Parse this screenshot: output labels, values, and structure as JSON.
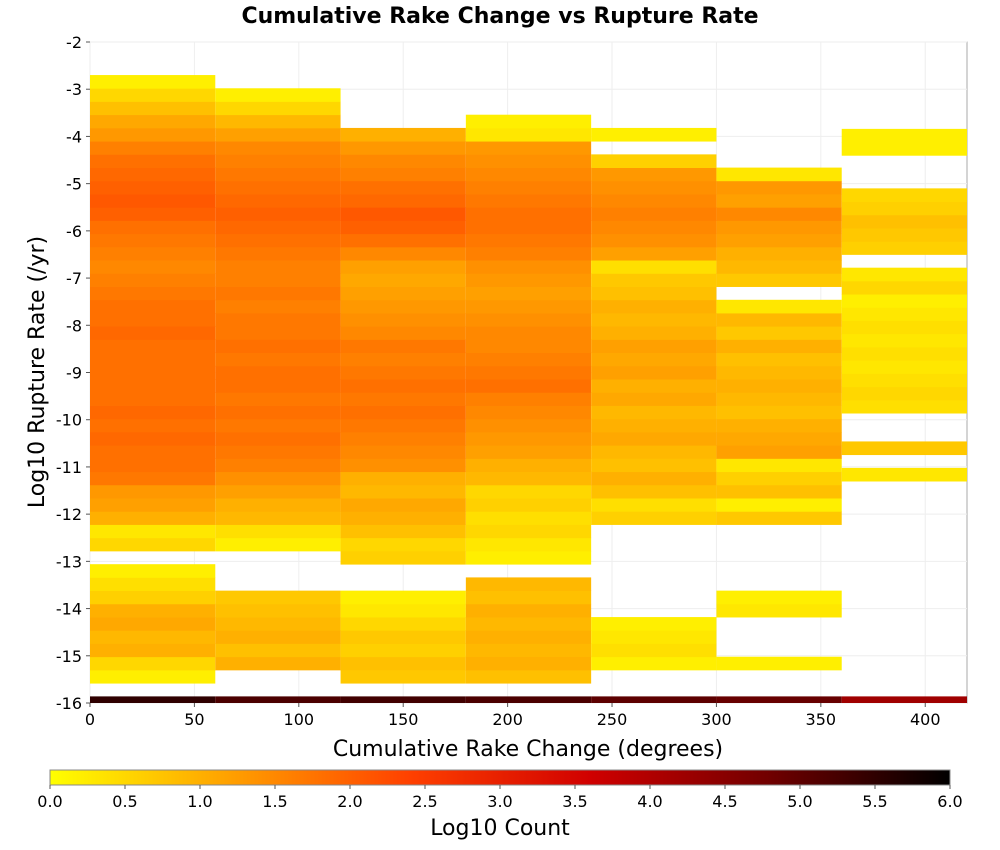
{
  "chart_data": {
    "type": "heatmap",
    "title": "Cumulative Rake Change vs Rupture Rate",
    "xlabel": "Cumulative Rake Change (degrees)",
    "ylabel": "Log10 Rupture Rate (/yr)",
    "xlim": [
      0,
      420
    ],
    "ylim": [
      -16,
      -2
    ],
    "x_ticks": [
      0,
      50,
      100,
      150,
      200,
      250,
      300,
      350,
      400
    ],
    "y_ticks": [
      -2,
      -3,
      -4,
      -5,
      -6,
      -7,
      -8,
      -9,
      -10,
      -11,
      -12,
      -13,
      -14,
      -15,
      -16
    ],
    "x_bin_edges": [
      0,
      60,
      120,
      180,
      240,
      300,
      360,
      420
    ],
    "y_bin_width": 0.28,
    "y_bin_start": -16,
    "grid": true,
    "colorbar": {
      "label": "Log10 Count",
      "range": [
        0,
        6
      ],
      "ticks": [
        "0.0",
        "0.5",
        "1.0",
        "1.5",
        "2.0",
        "2.5",
        "3.0",
        "3.5",
        "4.0",
        "4.5",
        "5.0",
        "5.5",
        "6.0"
      ],
      "colormap": [
        "#ffff00",
        "#ffa000",
        "#ff4000",
        "#d00000",
        "#700000",
        "#000000"
      ]
    },
    "columns": [
      {
        "x_range": [
          0,
          60
        ],
        "bins": [
          [
            -15.58,
            0.2
          ],
          [
            -15.3,
            0.5
          ],
          [
            -15.02,
            1.0
          ],
          [
            -14.74,
            0.9
          ],
          [
            -14.46,
            1.1
          ],
          [
            -14.18,
            1.0
          ],
          [
            -13.9,
            0.6
          ],
          [
            -13.62,
            0.4
          ],
          [
            -13.34,
            0.2
          ],
          [
            -12.78,
            0.5
          ],
          [
            -12.5,
            0.3
          ],
          [
            -12.22,
            1.0
          ],
          [
            -11.94,
            1.2
          ],
          [
            -11.66,
            1.3
          ],
          [
            -11.38,
            1.7
          ],
          [
            -11.1,
            1.8
          ],
          [
            -10.82,
            1.8
          ],
          [
            -10.54,
            1.9
          ],
          [
            -10.26,
            1.8
          ],
          [
            -9.98,
            1.9
          ],
          [
            -9.7,
            1.8
          ],
          [
            -9.42,
            1.8
          ],
          [
            -9.14,
            1.8
          ],
          [
            -8.86,
            1.8
          ],
          [
            -8.58,
            1.8
          ],
          [
            -8.3,
            1.9
          ],
          [
            -8.02,
            1.8
          ],
          [
            -7.74,
            1.8
          ],
          [
            -7.46,
            1.7
          ],
          [
            -7.18,
            1.6
          ],
          [
            -6.9,
            1.5
          ],
          [
            -6.62,
            1.6
          ],
          [
            -6.34,
            1.7
          ],
          [
            -6.06,
            1.8
          ],
          [
            -5.78,
            2.0
          ],
          [
            -5.5,
            2.1
          ],
          [
            -5.22,
            2.0
          ],
          [
            -4.94,
            1.9
          ],
          [
            -4.66,
            1.8
          ],
          [
            -4.38,
            1.6
          ],
          [
            -4.1,
            1.3
          ],
          [
            -3.82,
            1.1
          ],
          [
            -3.54,
            0.8
          ],
          [
            -3.26,
            0.5
          ],
          [
            -2.98,
            0.2
          ]
        ]
      },
      {
        "x_range": [
          60,
          120
        ],
        "bins": [
          [
            -15.3,
            1.0
          ],
          [
            -15.02,
            0.8
          ],
          [
            -14.74,
            1.0
          ],
          [
            -14.46,
            0.9
          ],
          [
            -14.18,
            0.8
          ],
          [
            -13.9,
            0.7
          ],
          [
            -12.78,
            0.2
          ],
          [
            -12.5,
            0.4
          ],
          [
            -12.22,
            0.9
          ],
          [
            -11.94,
            1.0
          ],
          [
            -11.66,
            1.2
          ],
          [
            -11.38,
            1.4
          ],
          [
            -11.1,
            1.6
          ],
          [
            -10.82,
            1.7
          ],
          [
            -10.54,
            1.8
          ],
          [
            -10.26,
            1.7
          ],
          [
            -9.98,
            1.8
          ],
          [
            -9.7,
            1.7
          ],
          [
            -9.42,
            1.8
          ],
          [
            -9.14,
            1.8
          ],
          [
            -8.86,
            1.7
          ],
          [
            -8.58,
            1.8
          ],
          [
            -8.3,
            1.7
          ],
          [
            -8.02,
            1.7
          ],
          [
            -7.74,
            1.6
          ],
          [
            -7.46,
            1.7
          ],
          [
            -7.18,
            1.6
          ],
          [
            -6.9,
            1.6
          ],
          [
            -6.62,
            1.7
          ],
          [
            -6.34,
            1.8
          ],
          [
            -6.06,
            1.9
          ],
          [
            -5.78,
            2.0
          ],
          [
            -5.5,
            1.9
          ],
          [
            -5.22,
            1.8
          ],
          [
            -4.94,
            1.7
          ],
          [
            -4.66,
            1.6
          ],
          [
            -4.38,
            1.5
          ],
          [
            -4.1,
            1.2
          ],
          [
            -3.82,
            0.9
          ],
          [
            -3.54,
            0.5
          ],
          [
            -3.26,
            0.2
          ]
        ]
      },
      {
        "x_range": [
          120,
          180
        ],
        "bins": [
          [
            -15.58,
            0.7
          ],
          [
            -15.3,
            0.8
          ],
          [
            -15.02,
            0.6
          ],
          [
            -14.74,
            0.7
          ],
          [
            -14.46,
            0.5
          ],
          [
            -14.18,
            0.3
          ],
          [
            -13.9,
            0.2
          ],
          [
            -13.06,
            0.6
          ],
          [
            -12.78,
            0.5
          ],
          [
            -12.5,
            0.8
          ],
          [
            -12.22,
            1.0
          ],
          [
            -11.94,
            1.1
          ],
          [
            -11.66,
            0.9
          ],
          [
            -11.38,
            1.0
          ],
          [
            -11.1,
            1.4
          ],
          [
            -10.82,
            1.5
          ],
          [
            -10.54,
            1.6
          ],
          [
            -10.26,
            1.7
          ],
          [
            -9.98,
            1.8
          ],
          [
            -9.7,
            1.7
          ],
          [
            -9.42,
            1.8
          ],
          [
            -9.14,
            1.7
          ],
          [
            -8.86,
            1.6
          ],
          [
            -8.58,
            1.7
          ],
          [
            -8.3,
            1.5
          ],
          [
            -8.02,
            1.4
          ],
          [
            -7.74,
            1.3
          ],
          [
            -7.46,
            1.2
          ],
          [
            -7.18,
            1.1
          ],
          [
            -6.9,
            1.2
          ],
          [
            -6.62,
            1.5
          ],
          [
            -6.34,
            1.8
          ],
          [
            -6.06,
            2.0
          ],
          [
            -5.78,
            2.1
          ],
          [
            -5.5,
            1.9
          ],
          [
            -5.22,
            1.8
          ],
          [
            -4.94,
            1.6
          ],
          [
            -4.66,
            1.5
          ],
          [
            -4.38,
            1.3
          ],
          [
            -4.1,
            1.0
          ]
        ]
      },
      {
        "x_range": [
          180,
          240
        ],
        "bins": [
          [
            -15.58,
            0.8
          ],
          [
            -15.3,
            1.0
          ],
          [
            -15.02,
            0.9
          ],
          [
            -14.74,
            1.0
          ],
          [
            -14.46,
            0.9
          ],
          [
            -14.18,
            1.0
          ],
          [
            -13.9,
            0.8
          ],
          [
            -13.62,
            0.9
          ],
          [
            -13.06,
            0.2
          ],
          [
            -12.78,
            0.3
          ],
          [
            -12.5,
            0.5
          ],
          [
            -12.22,
            0.4
          ],
          [
            -11.94,
            0.6
          ],
          [
            -11.66,
            0.5
          ],
          [
            -11.38,
            0.9
          ],
          [
            -11.1,
            1.0
          ],
          [
            -10.82,
            1.2
          ],
          [
            -10.54,
            1.3
          ],
          [
            -10.26,
            1.4
          ],
          [
            -9.98,
            1.5
          ],
          [
            -9.7,
            1.6
          ],
          [
            -9.42,
            1.8
          ],
          [
            -9.14,
            1.7
          ],
          [
            -8.86,
            1.6
          ],
          [
            -8.58,
            1.5
          ],
          [
            -8.3,
            1.5
          ],
          [
            -8.02,
            1.4
          ],
          [
            -7.74,
            1.3
          ],
          [
            -7.46,
            1.2
          ],
          [
            -7.18,
            1.3
          ],
          [
            -6.9,
            1.4
          ],
          [
            -6.62,
            1.6
          ],
          [
            -6.34,
            1.7
          ],
          [
            -6.06,
            1.8
          ],
          [
            -5.78,
            1.8
          ],
          [
            -5.5,
            1.7
          ],
          [
            -5.22,
            1.6
          ],
          [
            -4.94,
            1.5
          ],
          [
            -4.66,
            1.4
          ],
          [
            -4.38,
            1.3
          ],
          [
            -4.1,
            0.3
          ],
          [
            -3.82,
            0.2
          ]
        ]
      },
      {
        "x_range": [
          240,
          300
        ],
        "bins": [
          [
            -15.3,
            0.2
          ],
          [
            -15.02,
            0.4
          ],
          [
            -14.74,
            0.3
          ],
          [
            -14.46,
            0.2
          ],
          [
            -12.22,
            0.6
          ],
          [
            -11.94,
            0.4
          ],
          [
            -11.66,
            0.8
          ],
          [
            -11.38,
            1.0
          ],
          [
            -11.1,
            0.8
          ],
          [
            -10.82,
            0.9
          ],
          [
            -10.54,
            1.1
          ],
          [
            -10.26,
            1.0
          ],
          [
            -9.98,
            0.9
          ],
          [
            -9.7,
            1.1
          ],
          [
            -9.42,
            1.0
          ],
          [
            -9.14,
            1.2
          ],
          [
            -8.86,
            1.1
          ],
          [
            -8.58,
            1.2
          ],
          [
            -8.3,
            1.0
          ],
          [
            -8.02,
            0.9
          ],
          [
            -7.74,
            1.0
          ],
          [
            -7.46,
            0.8
          ],
          [
            -7.18,
            0.7
          ],
          [
            -6.9,
            0.4
          ],
          [
            -6.62,
            1.2
          ],
          [
            -6.34,
            1.4
          ],
          [
            -6.06,
            1.5
          ],
          [
            -5.78,
            1.6
          ],
          [
            -5.5,
            1.5
          ],
          [
            -5.22,
            1.4
          ],
          [
            -4.94,
            1.3
          ],
          [
            -4.66,
            0.6
          ],
          [
            -4.1,
            0.2
          ]
        ]
      },
      {
        "x_range": [
          300,
          360
        ],
        "bins": [
          [
            -15.3,
            0.2
          ],
          [
            -14.18,
            0.3
          ],
          [
            -13.9,
            0.2
          ],
          [
            -12.22,
            0.7
          ],
          [
            -11.94,
            0.2
          ],
          [
            -11.66,
            0.8
          ],
          [
            -11.38,
            0.6
          ],
          [
            -11.1,
            0.3
          ],
          [
            -10.82,
            1.2
          ],
          [
            -10.54,
            1.1
          ],
          [
            -10.26,
            1.0
          ],
          [
            -9.98,
            0.8
          ],
          [
            -9.7,
            0.9
          ],
          [
            -9.42,
            1.0
          ],
          [
            -9.14,
            0.9
          ],
          [
            -8.86,
            0.8
          ],
          [
            -8.58,
            1.0
          ],
          [
            -8.3,
            0.7
          ],
          [
            -8.02,
            0.9
          ],
          [
            -7.74,
            0.3
          ],
          [
            -7.18,
            0.7
          ],
          [
            -6.9,
            0.9
          ],
          [
            -6.62,
            1.0
          ],
          [
            -6.34,
            1.2
          ],
          [
            -6.06,
            1.3
          ],
          [
            -5.78,
            1.5
          ],
          [
            -5.5,
            1.2
          ],
          [
            -5.22,
            1.3
          ],
          [
            -4.94,
            0.3
          ]
        ]
      },
      {
        "x_range": [
          360,
          420
        ],
        "bins": [
          [
            -11.3,
            0.3
          ],
          [
            -10.74,
            0.7
          ],
          [
            -9.86,
            0.4
          ],
          [
            -9.58,
            0.5
          ],
          [
            -9.3,
            0.4
          ],
          [
            -9.02,
            0.3
          ],
          [
            -8.74,
            0.4
          ],
          [
            -8.46,
            0.3
          ],
          [
            -8.18,
            0.4
          ],
          [
            -7.9,
            0.3
          ],
          [
            -7.62,
            0.2
          ],
          [
            -7.34,
            0.5
          ],
          [
            -7.06,
            0.3
          ],
          [
            -6.5,
            0.6
          ],
          [
            -6.22,
            0.7
          ],
          [
            -5.94,
            0.8
          ],
          [
            -5.66,
            0.6
          ],
          [
            -5.38,
            0.5
          ],
          [
            -4.4,
            0.2
          ],
          [
            -4.12,
            0.2
          ]
        ]
      },
      {
        "x_range": [
          0,
          420
        ],
        "note": "",
        "bins": []
      }
    ],
    "bottom_strip": [
      {
        "x_range": [
          0,
          60
        ],
        "value": 5.5
      },
      {
        "x_range": [
          60,
          120
        ],
        "value": 5.2
      },
      {
        "x_range": [
          120,
          180
        ],
        "value": 5.3
      },
      {
        "x_range": [
          180,
          240
        ],
        "value": 5.2
      },
      {
        "x_range": [
          240,
          300
        ],
        "value": 5.0
      },
      {
        "x_range": [
          300,
          360
        ],
        "value": 4.9
      },
      {
        "x_range": [
          360,
          420
        ],
        "value": 4.2
      }
    ]
  }
}
